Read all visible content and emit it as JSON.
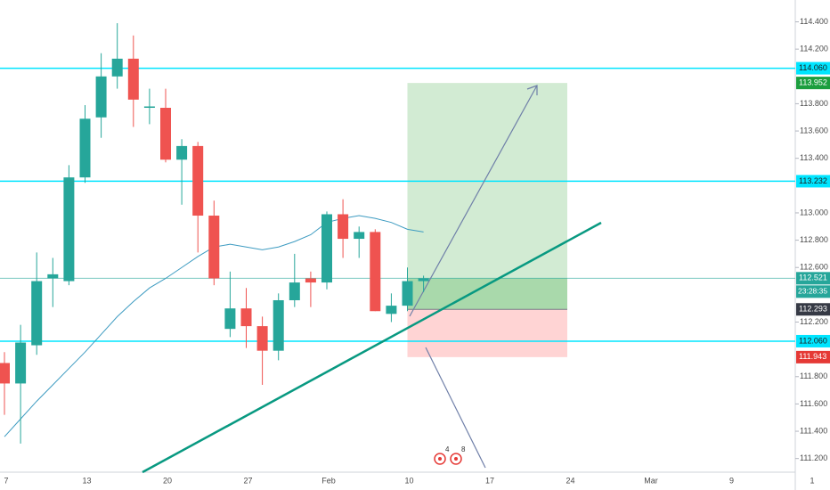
{
  "chart_data": {
    "type": "candlestick",
    "up_color": "#26a69a",
    "down_color": "#ef5350",
    "open": [
      111.9,
      111.75,
      112.03,
      112.52,
      112.5,
      113.26,
      113.7,
      114.0,
      114.13,
      113.77,
      113.77,
      113.39,
      113.49,
      112.98,
      112.15,
      112.3,
      112.17,
      111.99,
      112.36,
      112.52,
      112.49,
      112.99,
      112.81,
      112.86,
      112.26,
      112.32,
      112.5
    ],
    "high": [
      111.98,
      112.18,
      112.71,
      112.67,
      113.35,
      113.79,
      114.17,
      114.39,
      114.3,
      113.91,
      113.91,
      113.54,
      113.52,
      113.09,
      112.57,
      112.45,
      112.24,
      112.41,
      112.7,
      112.57,
      113.01,
      113.1,
      112.9,
      112.88,
      112.41,
      112.6,
      112.54
    ],
    "low": [
      111.52,
      111.31,
      111.96,
      112.31,
      112.47,
      113.22,
      113.55,
      113.91,
      113.63,
      113.65,
      113.37,
      113.06,
      112.71,
      112.47,
      112.09,
      112.01,
      111.74,
      111.92,
      112.31,
      112.31,
      112.44,
      112.67,
      112.67,
      112.28,
      112.2,
      112.28,
      112.42
    ],
    "close": [
      111.75,
      112.05,
      112.5,
      112.55,
      113.26,
      113.69,
      114.0,
      114.13,
      113.83,
      113.78,
      113.39,
      113.49,
      112.98,
      112.52,
      112.3,
      112.17,
      111.99,
      112.36,
      112.49,
      112.49,
      112.99,
      112.81,
      112.86,
      112.28,
      112.32,
      112.5,
      112.52
    ],
    "moving_average": {
      "color": "#3d9bc1",
      "values": [
        111.36,
        111.49,
        111.62,
        111.74,
        111.86,
        111.98,
        112.11,
        112.24,
        112.35,
        112.45,
        112.52,
        112.6,
        112.68,
        112.75,
        112.77,
        112.75,
        112.73,
        112.75,
        112.79,
        112.84,
        112.93,
        112.96,
        112.98,
        112.96,
        112.93,
        112.88,
        112.86
      ]
    },
    "x_labels": [
      "7",
      "13",
      "20",
      "27",
      "Feb",
      "10",
      "17",
      "24",
      "Mar",
      "9",
      "1"
    ],
    "ylim": [
      111.1,
      114.56
    ],
    "yticks": [
      {
        "value": 114.4,
        "label": "114.400"
      },
      {
        "value": 114.2,
        "label": "114.200"
      },
      {
        "value": 113.8,
        "label": "113.800"
      },
      {
        "value": 113.6,
        "label": "113.600"
      },
      {
        "value": 113.4,
        "label": "113.400"
      },
      {
        "value": 113.0,
        "label": "113.000"
      },
      {
        "value": 112.8,
        "label": "112.800"
      },
      {
        "value": 112.6,
        "label": "112.600"
      },
      {
        "value": 112.2,
        "label": "112.200"
      },
      {
        "value": 111.8,
        "label": "111.800"
      },
      {
        "value": 111.6,
        "label": "111.600"
      },
      {
        "value": 111.4,
        "label": "111.400"
      },
      {
        "value": 111.2,
        "label": "111.200"
      }
    ],
    "levels": [
      {
        "value": 114.06,
        "label": "114.060"
      },
      {
        "value": 113.232,
        "label": "113.232"
      },
      {
        "value": 112.06,
        "label": "112.060"
      }
    ],
    "level_color": "#00e5ff",
    "position": {
      "target": {
        "value": 113.952,
        "label": "113.952"
      },
      "entry": {
        "value": 112.293,
        "label": "112.293"
      },
      "stop": {
        "value": 111.943,
        "label": "111.943"
      }
    },
    "current": {
      "value": 112.521,
      "label": "112.521",
      "countdown": "23:28:35"
    },
    "events": [
      "4",
      "8"
    ]
  }
}
